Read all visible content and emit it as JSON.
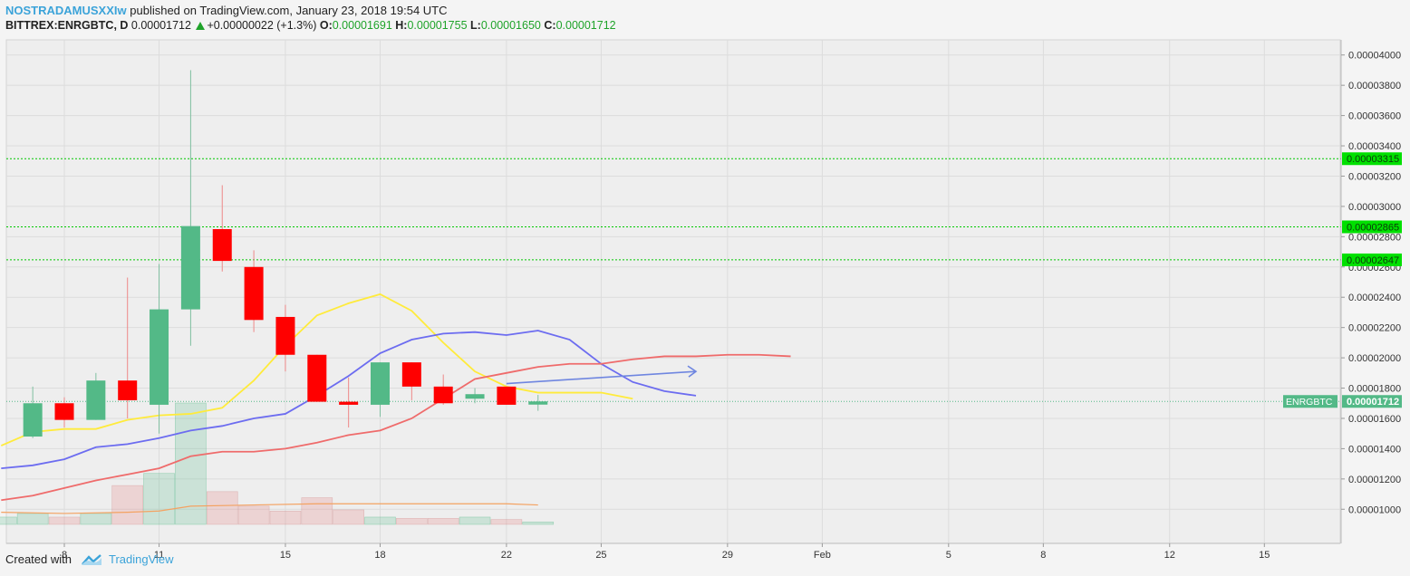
{
  "header": {
    "author": "NOSTRADAMUSXXIw",
    "published_text": "published on TradingView.com, January 23, 2018 19:54 UTC",
    "symbol_line": "BITTREX:ENRGBTC, D",
    "last": "0.00001712",
    "change": "+0.00000022 (+1.3%)",
    "o_label": "O:",
    "o": "0.00001691",
    "h_label": "H:",
    "h": "0.00001755",
    "l_label": "L:",
    "l": "0.00001650",
    "c_label": "C:",
    "c": "0.00001712"
  },
  "footer": {
    "created_with": "Created with",
    "brand": "TradingView"
  },
  "colors": {
    "up": "#53b987",
    "down": "#ff0000",
    "ma_yellow": "#ffeb3b",
    "ma_blue": "#6c6cf0",
    "ma_red": "#ef6b6b",
    "vol_ma": "#f4a261",
    "level": "#00c800",
    "arrow": "#6f86e0",
    "price_badge": "#53b987"
  },
  "chart_data": {
    "type": "candlestick",
    "symbol": "ENRGBTC",
    "exchange": "BITTREX",
    "interval": "D",
    "ylim": [
      9e-06,
      4.1e-05
    ],
    "y_ticks": [
      "0.00004000",
      "0.00003800",
      "0.00003600",
      "0.00003400",
      "0.00003200",
      "0.00003000",
      "0.00002800",
      "0.00002600",
      "0.00002400",
      "0.00002200",
      "0.00002000",
      "0.00001800",
      "0.00001600",
      "0.00001400",
      "0.00001200",
      "0.00001000"
    ],
    "x_ticks": [
      {
        "label": "8",
        "day": 8
      },
      {
        "label": "11",
        "day": 11
      },
      {
        "label": "15",
        "day": 15
      },
      {
        "label": "18",
        "day": 18
      },
      {
        "label": "22",
        "day": 22
      },
      {
        "label": "25",
        "day": 25
      },
      {
        "label": "29",
        "day": 29
      },
      {
        "label": "Feb",
        "day": 32
      },
      {
        "label": "5",
        "day": 36
      },
      {
        "label": "8",
        "day": 39
      },
      {
        "label": "12",
        "day": 43
      },
      {
        "label": "15",
        "day": 46
      }
    ],
    "candles": [
      {
        "day": 7,
        "o": 1.48e-05,
        "h": 1.81e-05,
        "l": 1.47e-05,
        "c": 1.7e-05
      },
      {
        "day": 8,
        "o": 1.7e-05,
        "h": 1.74e-05,
        "l": 1.54e-05,
        "c": 1.59e-05
      },
      {
        "day": 9,
        "o": 1.59e-05,
        "h": 1.9e-05,
        "l": 1.59e-05,
        "c": 1.85e-05
      },
      {
        "day": 10,
        "o": 1.85e-05,
        "h": 2.53e-05,
        "l": 1.6e-05,
        "c": 1.72e-05
      },
      {
        "day": 11,
        "o": 1.69e-05,
        "h": 2.62e-05,
        "l": 1.5e-05,
        "c": 2.32e-05
      },
      {
        "day": 12,
        "o": 2.32e-05,
        "h": 3.9e-05,
        "l": 2.08e-05,
        "c": 2.87e-05
      },
      {
        "day": 13,
        "o": 2.85e-05,
        "h": 3.14e-05,
        "l": 2.57e-05,
        "c": 2.64e-05
      },
      {
        "day": 14,
        "o": 2.6e-05,
        "h": 2.71e-05,
        "l": 2.17e-05,
        "c": 2.25e-05
      },
      {
        "day": 15,
        "o": 2.27e-05,
        "h": 2.35e-05,
        "l": 1.91e-05,
        "c": 2.02e-05
      },
      {
        "day": 16,
        "o": 2.02e-05,
        "h": 2.02e-05,
        "l": 1.71e-05,
        "c": 1.71e-05
      },
      {
        "day": 17,
        "o": 1.71e-05,
        "h": 1.87e-05,
        "l": 1.54e-05,
        "c": 1.69e-05
      },
      {
        "day": 18,
        "o": 1.69e-05,
        "h": 1.97e-05,
        "l": 1.61e-05,
        "c": 1.97e-05
      },
      {
        "day": 19,
        "o": 1.97e-05,
        "h": 1.97e-05,
        "l": 1.72e-05,
        "c": 1.81e-05
      },
      {
        "day": 20,
        "o": 1.81e-05,
        "h": 1.89e-05,
        "l": 1.69e-05,
        "c": 1.7e-05
      },
      {
        "day": 21,
        "o": 1.73e-05,
        "h": 1.8e-05,
        "l": 1.7e-05,
        "c": 1.76e-05
      },
      {
        "day": 22,
        "o": 1.81e-05,
        "h": 1.81e-05,
        "l": 1.69e-05,
        "c": 1.69e-05
      },
      {
        "day": 23,
        "o": 1.691e-05,
        "h": 1.755e-05,
        "l": 1.65e-05,
        "c": 1.712e-05
      }
    ],
    "volume": [
      {
        "day": 6,
        "v": 0.06,
        "up": true
      },
      {
        "day": 7,
        "v": 0.09,
        "up": true
      },
      {
        "day": 8,
        "v": 0.06,
        "up": false
      },
      {
        "day": 9,
        "v": 0.09,
        "up": true
      },
      {
        "day": 10,
        "v": 0.32,
        "up": false
      },
      {
        "day": 11,
        "v": 0.42,
        "up": true
      },
      {
        "day": 12,
        "v": 1.0,
        "up": true
      },
      {
        "day": 13,
        "v": 0.27,
        "up": false
      },
      {
        "day": 14,
        "v": 0.15,
        "up": false
      },
      {
        "day": 15,
        "v": 0.11,
        "up": false
      },
      {
        "day": 16,
        "v": 0.22,
        "up": false
      },
      {
        "day": 17,
        "v": 0.12,
        "up": false
      },
      {
        "day": 18,
        "v": 0.06,
        "up": true
      },
      {
        "day": 19,
        "v": 0.05,
        "up": false
      },
      {
        "day": 20,
        "v": 0.05,
        "up": false
      },
      {
        "day": 21,
        "v": 0.06,
        "up": true
      },
      {
        "day": 22,
        "v": 0.04,
        "up": false
      },
      {
        "day": 23,
        "v": 0.02,
        "up": true
      }
    ],
    "series": [
      {
        "color": "#ffeb3b",
        "points": [
          [
            6,
            1.42e-05
          ],
          [
            7,
            1.51e-05
          ],
          [
            8,
            1.53e-05
          ],
          [
            9,
            1.53e-05
          ],
          [
            10,
            1.59e-05
          ],
          [
            11,
            1.62e-05
          ],
          [
            12,
            1.63e-05
          ],
          [
            13,
            1.67e-05
          ],
          [
            14,
            1.85e-05
          ],
          [
            15,
            2.08e-05
          ],
          [
            16,
            2.28e-05
          ],
          [
            17,
            2.36e-05
          ],
          [
            18,
            2.42e-05
          ],
          [
            19,
            2.31e-05
          ],
          [
            20,
            2.1e-05
          ],
          [
            21,
            1.91e-05
          ],
          [
            22,
            1.81e-05
          ],
          [
            23,
            1.77e-05
          ],
          [
            24,
            1.77e-05
          ],
          [
            25,
            1.77e-05
          ],
          [
            26,
            1.73e-05
          ]
        ]
      },
      {
        "color": "#6c6cf0",
        "points": [
          [
            6,
            1.27e-05
          ],
          [
            7,
            1.29e-05
          ],
          [
            8,
            1.33e-05
          ],
          [
            9,
            1.41e-05
          ],
          [
            10,
            1.43e-05
          ],
          [
            11,
            1.47e-05
          ],
          [
            12,
            1.52e-05
          ],
          [
            13,
            1.55e-05
          ],
          [
            14,
            1.6e-05
          ],
          [
            15,
            1.63e-05
          ],
          [
            16,
            1.75e-05
          ],
          [
            17,
            1.88e-05
          ],
          [
            18,
            2.03e-05
          ],
          [
            19,
            2.12e-05
          ],
          [
            20,
            2.16e-05
          ],
          [
            21,
            2.17e-05
          ],
          [
            22,
            2.15e-05
          ],
          [
            23,
            2.18e-05
          ],
          [
            24,
            2.12e-05
          ],
          [
            25,
            1.96e-05
          ],
          [
            26,
            1.84e-05
          ],
          [
            27,
            1.78e-05
          ],
          [
            28,
            1.75e-05
          ]
        ]
      },
      {
        "color": "#ef6b6b",
        "points": [
          [
            6,
            1.06e-05
          ],
          [
            7,
            1.09e-05
          ],
          [
            8,
            1.14e-05
          ],
          [
            9,
            1.19e-05
          ],
          [
            10,
            1.23e-05
          ],
          [
            11,
            1.27e-05
          ],
          [
            12,
            1.35e-05
          ],
          [
            13,
            1.38e-05
          ],
          [
            14,
            1.38e-05
          ],
          [
            15,
            1.4e-05
          ],
          [
            16,
            1.44e-05
          ],
          [
            17,
            1.49e-05
          ],
          [
            18,
            1.52e-05
          ],
          [
            19,
            1.6e-05
          ],
          [
            20,
            1.73e-05
          ],
          [
            21,
            1.86e-05
          ],
          [
            22,
            1.9e-05
          ],
          [
            23,
            1.94e-05
          ],
          [
            24,
            1.96e-05
          ],
          [
            25,
            1.96e-05
          ],
          [
            26,
            1.99e-05
          ],
          [
            27,
            2.01e-05
          ],
          [
            28,
            2.01e-05
          ],
          [
            29,
            2.02e-05
          ],
          [
            30,
            2.02e-05
          ],
          [
            31,
            2.01e-05
          ]
        ]
      }
    ],
    "volume_ma": [
      [
        6,
        0.1
      ],
      [
        8,
        0.09
      ],
      [
        10,
        0.1
      ],
      [
        11,
        0.11
      ],
      [
        12,
        0.15
      ],
      [
        14,
        0.16
      ],
      [
        16,
        0.17
      ],
      [
        18,
        0.17
      ],
      [
        20,
        0.17
      ],
      [
        22,
        0.17
      ],
      [
        23,
        0.16
      ]
    ],
    "horizontal_levels": [
      {
        "value": 3.315e-05,
        "label": "0.00003315"
      },
      {
        "value": 2.865e-05,
        "label": "0.00002865"
      },
      {
        "value": 2.647e-05,
        "label": "0.00002647"
      }
    ],
    "trend_arrow": {
      "from": [
        22,
        1.83e-05
      ],
      "to": [
        28,
        1.91e-05
      ]
    },
    "last_price": {
      "value": 1.712e-05,
      "label": "0.00001712",
      "symbol_label": "ENRGBTC"
    }
  }
}
